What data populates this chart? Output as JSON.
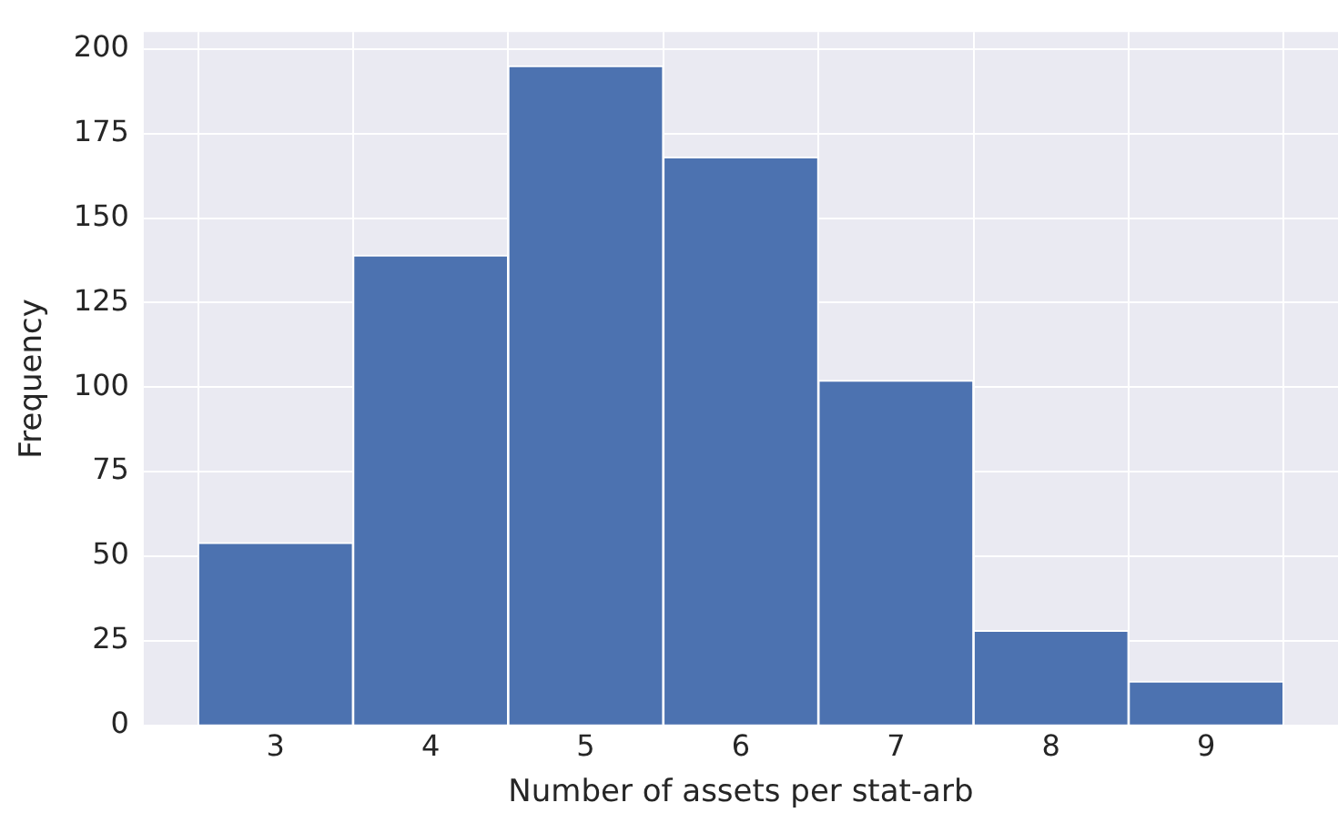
{
  "chart_data": {
    "type": "histogram",
    "xlabel": "Number of assets per stat-arb",
    "ylabel": "Frequency",
    "bins": [
      2.5,
      3.5,
      4.5,
      5.5,
      6.5,
      7.5,
      8.5,
      9.5
    ],
    "values": [
      54,
      139,
      195,
      168,
      102,
      28,
      13
    ],
    "color": "#4c72b0",
    "xlim": [
      2.15,
      9.85
    ],
    "ylim": [
      0,
      205
    ],
    "xticks": [
      3,
      4,
      5,
      6,
      7,
      8,
      9
    ],
    "yticks": [
      0,
      25,
      50,
      75,
      100,
      125,
      150,
      175,
      200
    ],
    "grid": true
  }
}
